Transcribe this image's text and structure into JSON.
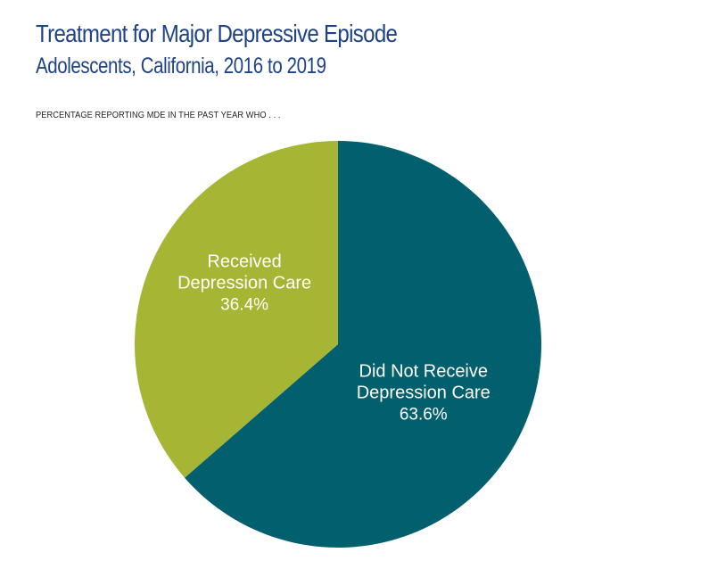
{
  "header": {
    "title": "Treatment for Major Depressive Episode",
    "subtitle": "Adolescents, California, 2016 to 2019",
    "caption": "PERCENTAGE REPORTING MDE IN THE PAST YEAR WHO . . ."
  },
  "chart_data": {
    "type": "pie",
    "title": "Treatment for Major Depressive Episode",
    "subtitle": "Adolescents, California, 2016 to 2019",
    "caption": "PERCENTAGE REPORTING MDE IN THE PAST YEAR WHO . . .",
    "start": "12 o'clock",
    "direction": "clockwise",
    "slices": [
      {
        "name": "did-not-receive",
        "label_lines": [
          "Did Not Receive",
          "Depression Care"
        ],
        "value": 63.6,
        "value_label": "63.6%",
        "color": "#02606e"
      },
      {
        "name": "received",
        "label_lines": [
          "Received",
          "Depression Care"
        ],
        "value": 36.4,
        "value_label": "36.4%",
        "color": "#a7b535"
      }
    ]
  }
}
